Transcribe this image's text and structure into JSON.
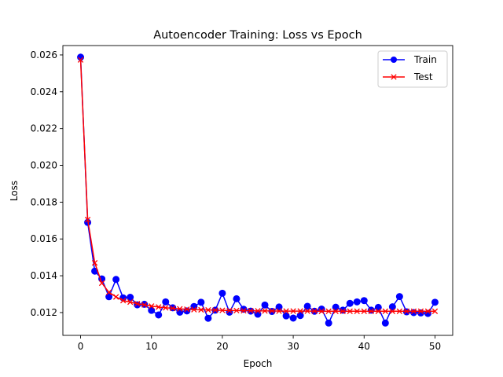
{
  "chart_data": {
    "type": "line",
    "title": "Autoencoder Training: Loss vs Epoch",
    "xlabel": "Epoch",
    "ylabel": "Loss",
    "xlim": [
      -2.5,
      52.5
    ],
    "ylim": [
      0.01076,
      0.02651
    ],
    "xticks": [
      0,
      10,
      20,
      30,
      40,
      50
    ],
    "xtick_labels": [
      "0",
      "10",
      "20",
      "30",
      "40",
      "50"
    ],
    "yticks": [
      0.012,
      0.014,
      0.016,
      0.018,
      0.02,
      0.022,
      0.024,
      0.026
    ],
    "ytick_labels": [
      "0.012",
      "0.014",
      "0.016",
      "0.018",
      "0.020",
      "0.022",
      "0.024",
      "0.026"
    ],
    "grid": false,
    "legend_position": "top-right",
    "x": [
      0,
      1,
      2,
      3,
      4,
      5,
      6,
      7,
      8,
      9,
      10,
      11,
      12,
      13,
      14,
      15,
      16,
      17,
      18,
      19,
      20,
      21,
      22,
      23,
      24,
      25,
      26,
      27,
      28,
      29,
      30,
      31,
      32,
      33,
      34,
      35,
      36,
      37,
      38,
      39,
      40,
      41,
      42,
      43,
      44,
      45,
      46,
      47,
      48,
      49,
      50
    ],
    "series": [
      {
        "name": "Train",
        "color": "#0000ff",
        "marker": "circle",
        "values": [
          0.02588,
          0.0169,
          0.01425,
          0.01383,
          0.01286,
          0.0138,
          0.0128,
          0.01283,
          0.01242,
          0.01245,
          0.01212,
          0.01187,
          0.01258,
          0.01226,
          0.01202,
          0.01209,
          0.01233,
          0.01256,
          0.01169,
          0.01213,
          0.01305,
          0.01202,
          0.01275,
          0.01218,
          0.01208,
          0.01191,
          0.01241,
          0.01206,
          0.0123,
          0.01182,
          0.0117,
          0.01184,
          0.01234,
          0.01207,
          0.01219,
          0.01143,
          0.01229,
          0.01213,
          0.0125,
          0.01258,
          0.01265,
          0.01213,
          0.01228,
          0.01143,
          0.01231,
          0.01287,
          0.01204,
          0.012,
          0.01198,
          0.01195,
          0.01256
        ]
      },
      {
        "name": "Test",
        "color": "#ff0000",
        "marker": "x",
        "values": [
          0.02573,
          0.01705,
          0.0147,
          0.0136,
          0.0131,
          0.01285,
          0.01265,
          0.01257,
          0.01248,
          0.01242,
          0.01235,
          0.0123,
          0.01226,
          0.01223,
          0.0122,
          0.01218,
          0.01216,
          0.01215,
          0.01214,
          0.01213,
          0.01212,
          0.01211,
          0.01211,
          0.0121,
          0.0121,
          0.01209,
          0.01209,
          0.01209,
          0.01208,
          0.01208,
          0.01208,
          0.01208,
          0.01208,
          0.01208,
          0.01207,
          0.01207,
          0.01207,
          0.01207,
          0.01207,
          0.01207,
          0.01207,
          0.01207,
          0.01207,
          0.01207,
          0.01207,
          0.01207,
          0.01207,
          0.01207,
          0.01207,
          0.01207,
          0.01207
        ]
      }
    ]
  }
}
